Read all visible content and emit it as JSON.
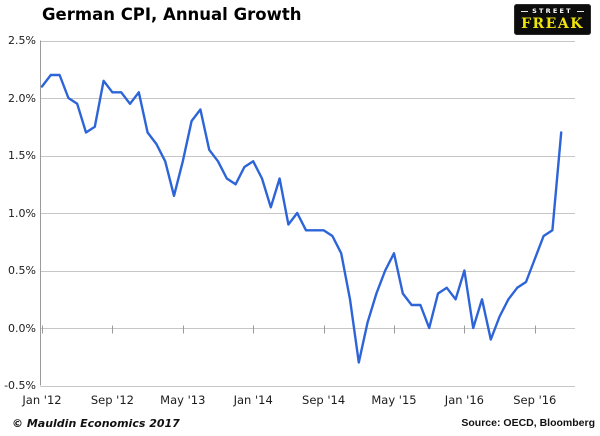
{
  "header": {
    "title": "German CPI, Annual Growth"
  },
  "logo": {
    "line1": "STREET",
    "line2": "FREAK",
    "bg_color": "#0c0c0c",
    "line1_color": "#ffffff",
    "line2_color": "#efe30e"
  },
  "footer": {
    "left": "© Mauldin Economics 2017",
    "right": "Source: OECD, Bloomberg"
  },
  "chart_data": {
    "type": "line",
    "title": "German CPI, Annual Growth",
    "series_name": "German CPI, year-over-year % change",
    "unit": "%",
    "line_color": "#2d64d8",
    "grid": true,
    "legend": false,
    "ylim": [
      -0.5,
      2.5
    ],
    "x": [
      "Jan '12",
      "Feb '12",
      "Mar '12",
      "Apr '12",
      "May '12",
      "Jun '12",
      "Jul '12",
      "Aug '12",
      "Sep '12",
      "Oct '12",
      "Nov '12",
      "Dec '12",
      "Jan '13",
      "Feb '13",
      "Mar '13",
      "Apr '13",
      "May '13",
      "Jun '13",
      "Jul '13",
      "Aug '13",
      "Sep '13",
      "Oct '13",
      "Nov '13",
      "Dec '13",
      "Jan '14",
      "Feb '14",
      "Mar '14",
      "Apr '14",
      "May '14",
      "Jun '14",
      "Jul '14",
      "Aug '14",
      "Sep '14",
      "Oct '14",
      "Nov '14",
      "Dec '14",
      "Jan '15",
      "Feb '15",
      "Mar '15",
      "Apr '15",
      "May '15",
      "Jun '15",
      "Jul '15",
      "Aug '15",
      "Sep '15",
      "Oct '15",
      "Nov '15",
      "Dec '15",
      "Jan '16",
      "Feb '16",
      "Mar '16",
      "Apr '16",
      "May '16",
      "Jun '16",
      "Jul '16",
      "Aug '16",
      "Sep '16",
      "Oct '16",
      "Nov '16",
      "Dec '16"
    ],
    "values": [
      2.1,
      2.2,
      2.2,
      2.0,
      1.95,
      1.7,
      1.75,
      2.15,
      2.05,
      2.05,
      1.95,
      2.05,
      1.7,
      1.6,
      1.45,
      1.15,
      1.45,
      1.8,
      1.9,
      1.55,
      1.45,
      1.3,
      1.25,
      1.4,
      1.45,
      1.3,
      1.05,
      1.3,
      0.9,
      1.0,
      0.85,
      0.85,
      0.85,
      0.8,
      0.65,
      0.25,
      -0.3,
      0.05,
      0.3,
      0.5,
      0.65,
      0.3,
      0.2,
      0.2,
      0.0,
      0.3,
      0.35,
      0.25,
      0.5,
      0.0,
      0.25,
      -0.1,
      0.1,
      0.25,
      0.35,
      0.4,
      0.6,
      0.8,
      0.85,
      1.7
    ],
    "yticks": {
      "labels": [
        "2.5%",
        "2.0%",
        "1.5%",
        "1.0%",
        "0.5%",
        "0.0%",
        "-0.5%"
      ],
      "values": [
        2.5,
        2.0,
        1.5,
        1.0,
        0.5,
        0.0,
        -0.5
      ]
    },
    "xticks": [
      {
        "label": "Jan '12",
        "i": 0
      },
      {
        "label": "Sep '12",
        "i": 8
      },
      {
        "label": "May '13",
        "i": 16
      },
      {
        "label": "Jan '14",
        "i": 24
      },
      {
        "label": "Sep '14",
        "i": 32
      },
      {
        "label": "May '15",
        "i": 40
      },
      {
        "label": "Jan '16",
        "i": 48
      },
      {
        "label": "Sep '16",
        "i": 56
      }
    ],
    "grid_color": "#c6c6c6",
    "axis_color": "#9b9b9b"
  }
}
